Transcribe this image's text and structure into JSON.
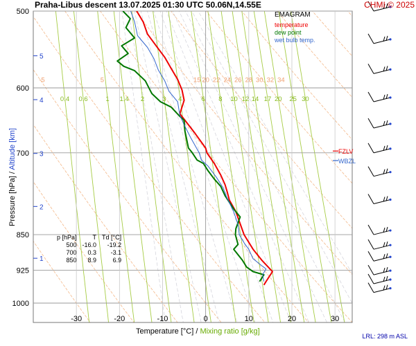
{
  "header": {
    "title": "Praha-Libus   descent   13.07.2025 01:30 UTC   50.06N,14.55E",
    "credit": "CHMI © 2025"
  },
  "legend": {
    "title": "EMAGRAM",
    "items": [
      {
        "label": "temperature",
        "color": "#ee0000"
      },
      {
        "label": "dew point",
        "color": "#007700"
      },
      {
        "label": "wet bulb temp.",
        "color": "#3366cc"
      }
    ]
  },
  "axes": {
    "y_label_pressure": "Pressure [hPa]",
    "y_label_sep": " / ",
    "y_label_altitude": "Altitude [km]",
    "x_label_temp": "Temperature [°C]",
    "x_label_sep": " / ",
    "x_label_mix": "Mixing ratio [g/kg]",
    "lrl": "LRL: 298 m ASL"
  },
  "table": {
    "headers": [
      "p [hPa]",
      "T",
      "Td [°C]"
    ],
    "rows": [
      [
        "500",
        "-16.0",
        "-19.2"
      ],
      [
        "700",
        "0.3",
        "-3.1"
      ],
      [
        "850",
        "8.9",
        "6.9"
      ]
    ]
  },
  "chart_data": {
    "type": "line",
    "title": "EMAGRAM",
    "xlabel": "Temperature [°C]",
    "ylabel": "Pressure [hPa]",
    "xlim": [
      -40,
      34
    ],
    "ylim_pressure": [
      1000,
      500
    ],
    "y_scale": "log",
    "pressure_ticks": [
      500,
      600,
      700,
      850,
      925,
      1000
    ],
    "temperature_ticks": [
      -30,
      -20,
      -10,
      0,
      10,
      20,
      30
    ],
    "altitude_ticks_km": [
      {
        "label": "5",
        "p": 556
      },
      {
        "label": "4",
        "p": 617
      },
      {
        "label": "3",
        "p": 701
      },
      {
        "label": "2",
        "p": 795
      },
      {
        "label": "1",
        "p": 899
      }
    ],
    "mixing_ratio_labels": [
      "0.4",
      "0.6",
      "1",
      "1.4",
      "2",
      "3",
      "4",
      "6",
      "8",
      "10",
      "12",
      "14",
      "17",
      "20",
      "25",
      "30"
    ],
    "dry_adiabat_labels": [
      "-5",
      "5",
      "15",
      "20",
      "22",
      "24",
      "26",
      "28",
      "30",
      "32",
      "34"
    ],
    "markers": [
      {
        "label": "FZLV",
        "p": 697,
        "color": "#ee0000"
      },
      {
        "label": "WBZL",
        "p": 713,
        "color": "#3366cc"
      }
    ],
    "series": [
      {
        "name": "temperature",
        "color": "#ee0000",
        "points": [
          [
            -16.0,
            500
          ],
          [
            -14.5,
            513
          ],
          [
            -13.5,
            528
          ],
          [
            -11.5,
            543
          ],
          [
            -9.5,
            558
          ],
          [
            -8,
            573
          ],
          [
            -6.5,
            588
          ],
          [
            -5.5,
            603
          ],
          [
            -5,
            618
          ],
          [
            -6,
            638
          ],
          [
            -4.8,
            648
          ],
          [
            -2.5,
            668
          ],
          [
            0,
            692
          ],
          [
            0.3,
            700
          ],
          [
            2,
            718
          ],
          [
            3.5,
            738
          ],
          [
            4.5,
            755
          ],
          [
            5,
            768
          ],
          [
            5.5,
            783
          ],
          [
            7,
            805
          ],
          [
            8.9,
            850
          ],
          [
            11,
            880
          ],
          [
            13,
            903
          ],
          [
            15,
            923
          ],
          [
            15.5,
            928
          ],
          [
            14,
            950
          ],
          [
            13.5,
            958
          ]
        ]
      },
      {
        "name": "dew point",
        "color": "#007700",
        "points": [
          [
            -19.2,
            500
          ],
          [
            -17.5,
            509
          ],
          [
            -18.5,
            520
          ],
          [
            -16.5,
            533
          ],
          [
            -19.5,
            543
          ],
          [
            -18,
            553
          ],
          [
            -20.5,
            563
          ],
          [
            -19,
            570
          ],
          [
            -16.5,
            576
          ],
          [
            -14,
            590
          ],
          [
            -12.5,
            608
          ],
          [
            -10.5,
            620
          ],
          [
            -8,
            628
          ],
          [
            -6,
            642
          ],
          [
            -5,
            648
          ],
          [
            -4.8,
            665
          ],
          [
            -4,
            692
          ],
          [
            -3.1,
            700
          ],
          [
            -2,
            712
          ],
          [
            -0.5,
            718
          ],
          [
            0.5,
            730
          ],
          [
            2,
            745
          ],
          [
            3.5,
            758
          ],
          [
            4.5,
            775
          ],
          [
            6.5,
            800
          ],
          [
            8,
            815
          ],
          [
            7,
            838
          ],
          [
            6.9,
            850
          ],
          [
            7.5,
            870
          ],
          [
            6.5,
            880
          ],
          [
            8.5,
            903
          ],
          [
            9.5,
            918
          ],
          [
            11,
            928
          ],
          [
            13.5,
            935
          ],
          [
            12.5,
            950
          ]
        ]
      },
      {
        "name": "wet bulb temp.",
        "color": "#3366cc",
        "points": [
          [
            -17.4,
            500
          ],
          [
            -16.5,
            513
          ],
          [
            -15.8,
            530
          ],
          [
            -13.5,
            545
          ],
          [
            -12,
            560
          ],
          [
            -11,
            575
          ],
          [
            -9.5,
            590
          ],
          [
            -8.5,
            605
          ],
          [
            -6.5,
            620
          ],
          [
            -6,
            640
          ],
          [
            -5,
            655
          ],
          [
            -3.5,
            675
          ],
          [
            -1.5,
            700
          ],
          [
            -1,
            712
          ],
          [
            0.5,
            722
          ],
          [
            2.5,
            742
          ],
          [
            4,
            760
          ],
          [
            5,
            780
          ],
          [
            6.5,
            805
          ],
          [
            7.5,
            830
          ],
          [
            7.8,
            850
          ],
          [
            9,
            868
          ],
          [
            10,
            880
          ],
          [
            11,
            900
          ],
          [
            13,
            915
          ],
          [
            14,
            922
          ],
          [
            13.2,
            935
          ],
          [
            13.5,
            950
          ]
        ]
      }
    ],
    "wind_barbs": [
      {
        "p": 500
      },
      {
        "p": 540
      },
      {
        "p": 580
      },
      {
        "p": 620
      },
      {
        "p": 660
      },
      {
        "p": 700
      },
      {
        "p": 740
      },
      {
        "p": 790
      },
      {
        "p": 850
      },
      {
        "p": 880
      },
      {
        "p": 905
      },
      {
        "p": 935
      },
      {
        "p": 955
      },
      {
        "p": 975
      }
    ]
  }
}
